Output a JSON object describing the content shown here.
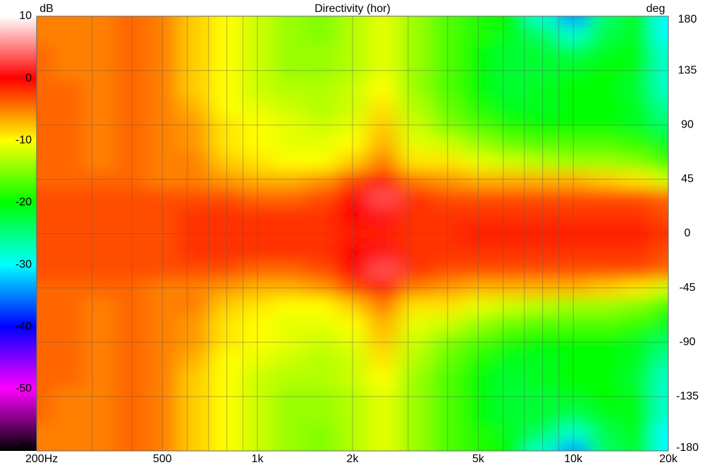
{
  "chart_data": {
    "type": "heatmap",
    "title": "Directivity (hor)",
    "zlabel": "dB",
    "ylabel": "deg",
    "x": [
      200,
      250,
      315,
      400,
      500,
      630,
      800,
      1000,
      1250,
      1600,
      2000,
      2500,
      3150,
      4000,
      5000,
      6300,
      8000,
      10000,
      12500,
      16000,
      20000
    ],
    "y": [
      -180,
      -165,
      -150,
      -135,
      -120,
      -105,
      -90,
      -75,
      -60,
      -45,
      -30,
      -15,
      0,
      15,
      30,
      45,
      60,
      75,
      90,
      105,
      120,
      135,
      150,
      165,
      180
    ],
    "z": [
      [
        -5,
        -5,
        -5,
        -4,
        -5,
        -8,
        -10,
        -12,
        -14,
        -15,
        -13,
        -11,
        -14,
        -17,
        -19,
        -20,
        -28,
        -34,
        -24,
        -21,
        -30
      ],
      [
        -5,
        -5,
        -5,
        -4,
        -5,
        -8,
        -10,
        -12,
        -14,
        -15,
        -13,
        -11,
        -14,
        -17,
        -19,
        -21,
        -24,
        -28,
        -23,
        -21,
        -30
      ],
      [
        -4,
        -5,
        -5,
        -4,
        -5,
        -8,
        -10,
        -12,
        -14,
        -14,
        -13,
        -11,
        -14,
        -17,
        -20,
        -22,
        -22,
        -23,
        -21,
        -20,
        -28
      ],
      [
        -4,
        -5,
        -5,
        -4,
        -5,
        -8,
        -10,
        -12,
        -14,
        -14,
        -13,
        -11,
        -14,
        -17,
        -20,
        -22,
        -22,
        -21,
        -20,
        -21,
        -28
      ],
      [
        -4,
        -4,
        -5,
        -4,
        -5,
        -8,
        -10,
        -12,
        -13,
        -13,
        -12,
        -10,
        -14,
        -17,
        -20,
        -22,
        -21,
        -20,
        -20,
        -22,
        -28
      ],
      [
        -4,
        -4,
        -5,
        -4,
        -5,
        -7,
        -10,
        -11,
        -12,
        -13,
        -12,
        -9,
        -13,
        -16,
        -19,
        -21,
        -21,
        -20,
        -20,
        -21,
        -26
      ],
      [
        -4,
        -4,
        -5,
        -4,
        -5,
        -6,
        -9,
        -10,
        -11,
        -12,
        -11,
        -8,
        -12,
        -15,
        -17,
        -19,
        -20,
        -20,
        -20,
        -21,
        -24
      ],
      [
        -4,
        -4,
        -5,
        -4,
        -5,
        -6,
        -9,
        -10,
        -11,
        -11,
        -10,
        -7,
        -11,
        -12,
        -14,
        -16,
        -17,
        -17,
        -17,
        -18,
        -21
      ],
      [
        -4,
        -4,
        -5,
        -4,
        -5,
        -5,
        -8,
        -9,
        -10,
        -10,
        -8,
        -5,
        -9,
        -9,
        -11,
        -12,
        -13,
        -14,
        -14,
        -15,
        -18
      ],
      [
        -4,
        -4,
        -4,
        -4,
        -5,
        -5,
        -6,
        -7,
        -7,
        -6,
        -3,
        -1,
        -5,
        -6,
        -7,
        -7,
        -7,
        -7,
        -8,
        -9,
        -12
      ],
      [
        -3,
        -3,
        -3,
        -3,
        -3,
        -3,
        -3,
        -4,
        -4,
        -3,
        0,
        3,
        -2,
        -3,
        -3,
        -3,
        -3,
        -3,
        -3,
        -3,
        -4
      ],
      [
        -3,
        -3,
        -3,
        -3,
        -3,
        -2,
        -2,
        -2,
        -2,
        -2,
        0,
        1,
        -2,
        -2,
        -2,
        -2,
        -2,
        -2,
        -2,
        -2,
        -3
      ],
      [
        -3,
        -3,
        -3,
        -3,
        -3,
        -2,
        -2,
        -2,
        -2,
        -2,
        -1,
        -1,
        -2,
        -2,
        -1,
        -1,
        -1,
        -1,
        -1,
        -1,
        -2
      ],
      [
        -3,
        -3,
        -3,
        -3,
        -3,
        -2,
        -2,
        -2,
        -2,
        -2,
        0,
        1,
        -2,
        -2,
        -2,
        -2,
        -2,
        -2,
        -2,
        -2,
        -3
      ],
      [
        -3,
        -3,
        -3,
        -3,
        -3,
        -3,
        -3,
        -4,
        -4,
        -3,
        0,
        3,
        -2,
        -3,
        -3,
        -3,
        -3,
        -3,
        -3,
        -3,
        -4
      ],
      [
        -4,
        -4,
        -4,
        -4,
        -5,
        -5,
        -6,
        -7,
        -7,
        -6,
        -3,
        -1,
        -5,
        -6,
        -7,
        -7,
        -7,
        -7,
        -8,
        -9,
        -12
      ],
      [
        -4,
        -4,
        -5,
        -4,
        -5,
        -5,
        -8,
        -9,
        -10,
        -10,
        -8,
        -5,
        -9,
        -9,
        -11,
        -12,
        -13,
        -14,
        -14,
        -15,
        -18
      ],
      [
        -4,
        -4,
        -5,
        -4,
        -5,
        -6,
        -9,
        -10,
        -11,
        -11,
        -10,
        -7,
        -11,
        -12,
        -14,
        -16,
        -17,
        -17,
        -17,
        -18,
        -21
      ],
      [
        -4,
        -4,
        -5,
        -4,
        -5,
        -6,
        -9,
        -10,
        -11,
        -12,
        -11,
        -8,
        -12,
        -15,
        -17,
        -19,
        -20,
        -20,
        -20,
        -21,
        -24
      ],
      [
        -4,
        -4,
        -5,
        -4,
        -5,
        -7,
        -10,
        -11,
        -12,
        -13,
        -12,
        -9,
        -13,
        -16,
        -19,
        -21,
        -21,
        -20,
        -20,
        -21,
        -26
      ],
      [
        -4,
        -4,
        -5,
        -4,
        -5,
        -8,
        -10,
        -12,
        -13,
        -13,
        -12,
        -10,
        -14,
        -17,
        -20,
        -22,
        -21,
        -20,
        -20,
        -22,
        -28
      ],
      [
        -4,
        -5,
        -5,
        -4,
        -5,
        -8,
        -10,
        -12,
        -14,
        -14,
        -13,
        -11,
        -14,
        -17,
        -20,
        -22,
        -22,
        -21,
        -20,
        -21,
        -28
      ],
      [
        -4,
        -5,
        -5,
        -4,
        -5,
        -8,
        -10,
        -12,
        -14,
        -14,
        -13,
        -11,
        -14,
        -17,
        -20,
        -22,
        -22,
        -23,
        -21,
        -20,
        -28
      ],
      [
        -5,
        -5,
        -5,
        -4,
        -5,
        -8,
        -10,
        -12,
        -14,
        -15,
        -13,
        -11,
        -14,
        -17,
        -19,
        -21,
        -24,
        -28,
        -23,
        -21,
        -30
      ],
      [
        -5,
        -5,
        -5,
        -4,
        -5,
        -8,
        -10,
        -12,
        -14,
        -15,
        -13,
        -11,
        -14,
        -17,
        -19,
        -20,
        -28,
        -34,
        -24,
        -21,
        -30
      ]
    ],
    "xlim": [
      200,
      20000
    ],
    "xscale": "log",
    "xticks": [
      {
        "value": 200,
        "label": "200Hz"
      },
      500,
      {
        "value": 1000,
        "label": "1k"
      },
      {
        "value": 2000,
        "label": "2k"
      },
      {
        "value": 5000,
        "label": "5k"
      },
      {
        "value": 10000,
        "label": "10k"
      },
      {
        "value": 20000,
        "label": "20k"
      }
    ],
    "xgrid": [
      300,
      400,
      600,
      700,
      800,
      900,
      3000,
      4000,
      6000,
      7000,
      8000,
      9000
    ],
    "ylim": [
      -180,
      180
    ],
    "yticks": [
      -180,
      -135,
      -90,
      -45,
      0,
      45,
      90,
      135,
      180
    ],
    "zlim": [
      -60,
      10
    ],
    "zticks": [
      10,
      0,
      -10,
      -20,
      -30,
      -40,
      -50,
      -60
    ],
    "colormap": [
      "#ffffff",
      "#ff0000",
      "#ffff00",
      "#00ff00",
      "#00ffff",
      "#0000ff",
      "#ff00ff",
      "#000000"
    ],
    "grid": true
  }
}
